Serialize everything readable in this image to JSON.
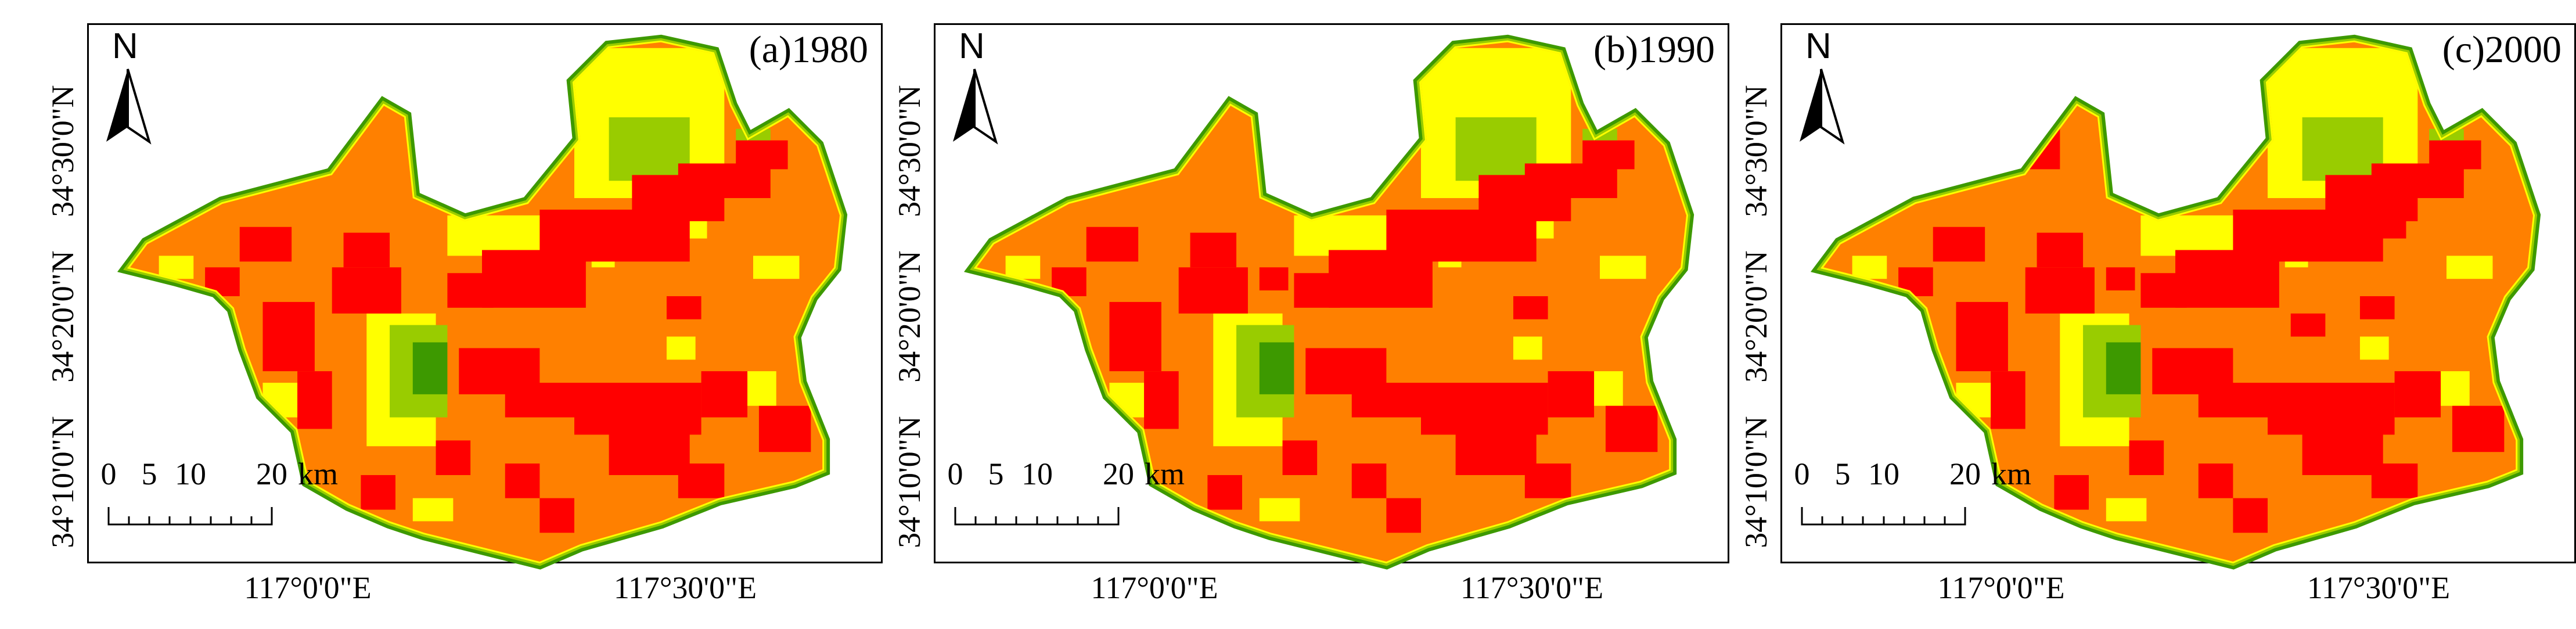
{
  "panels": [
    {
      "id": "a",
      "title": "(a)1980"
    },
    {
      "id": "b",
      "title": "(b)1990"
    },
    {
      "id": "c",
      "title": "(c)2000"
    }
  ],
  "north_arrow": {
    "label": "N"
  },
  "scale_bar": {
    "labels": [
      "0",
      "5",
      "10",
      "20"
    ],
    "unit": "km"
  },
  "latitude_labels": [
    "34°30'0\"N",
    "34°20'0\"N",
    "34°10'0\"N"
  ],
  "longitude_labels": [
    "117°0'0\"E",
    "117°30'0\"E"
  ],
  "legend_colors": {
    "class_1": "#ff0000",
    "class_2": "#ff8000",
    "class_3": "#ffff00",
    "class_4": "#99cc00",
    "class_5": "#4ca600",
    "class_6": "#3d9900"
  }
}
